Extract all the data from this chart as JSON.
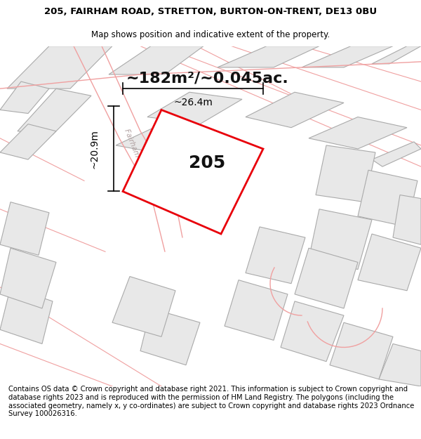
{
  "title_line1": "205, FAIRHAM ROAD, STRETTON, BURTON-ON-TRENT, DE13 0BU",
  "title_line2": "Map shows position and indicative extent of the property.",
  "area_text": "~182m²/~0.045ac.",
  "plot_label": "205",
  "dim_width": "~26.4m",
  "dim_height": "~20.9m",
  "footer_text": "Contains OS data © Crown copyright and database right 2021. This information is subject to Crown copyright and database rights 2023 and is reproduced with the permission of HM Land Registry. The polygons (including the associated geometry, namely x, y co-ordinates) are subject to Crown copyright and database rights 2023 Ordnance Survey 100026316.",
  "bg_color": "#ffffff",
  "map_bg": "#ffffff",
  "highlight_plot_fill": "#ffffff",
  "highlight_plot_edge": "#e8000a",
  "building_fill": "#e8e8e8",
  "building_edge": "#aaaaaa",
  "road_line_color": "#f0a0a0",
  "road_label_color": "#b0a0a0",
  "title_fontsize": 9.5,
  "subtitle_fontsize": 8.5,
  "footer_fontsize": 7.2,
  "dim_fontsize": 10,
  "area_fontsize": 16
}
